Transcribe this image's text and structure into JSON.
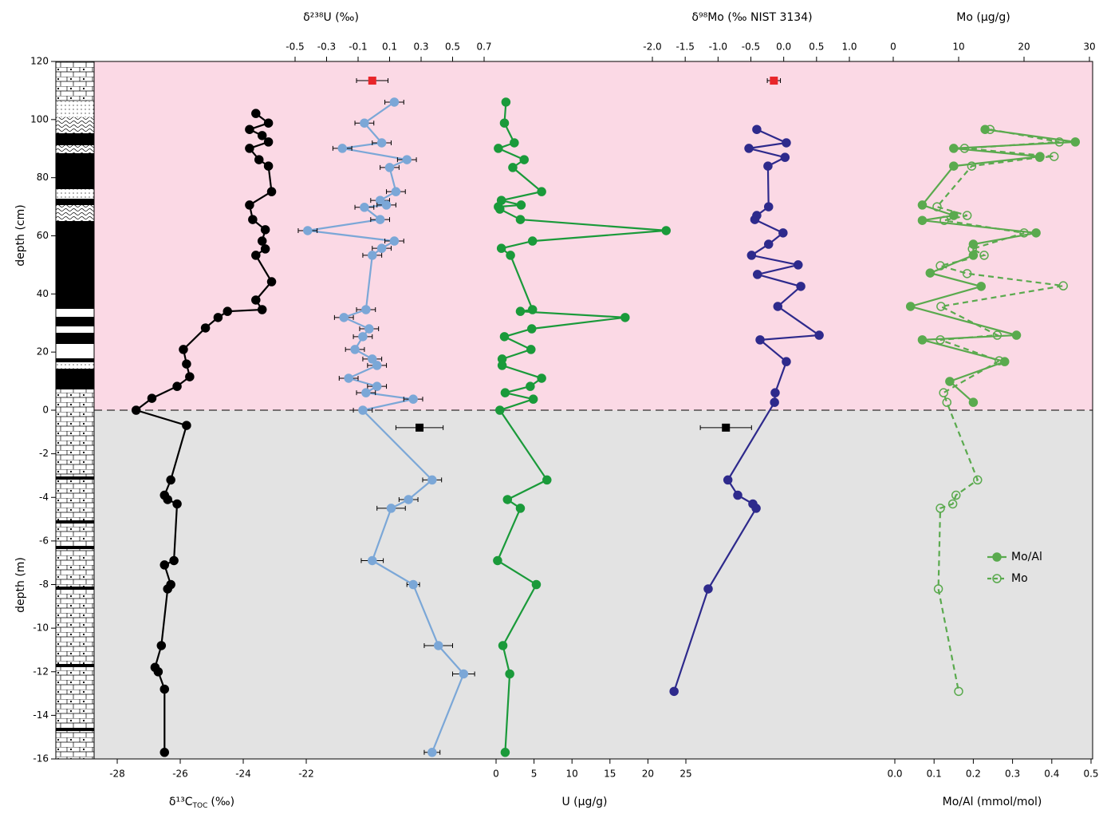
{
  "chart_data": {
    "type": "line",
    "ylabel": "depth (cm)",
    "ylim": [
      0,
      120
    ],
    "yticks": [
      0,
      20,
      40,
      60,
      80,
      100,
      120
    ],
    "ylabel_lower": "depth (m)",
    "ylim_lower": [
      -16,
      0
    ],
    "yticks_lower": [
      -16,
      -14,
      -12,
      -10,
      -8,
      -6,
      -4,
      -2
    ],
    "series": [
      {
        "xlabel": "δ¹³C",
        "xlabel_sub": "TOC",
        "xlabel_unit": "(‰)",
        "axis": "bottom",
        "color": "#000000",
        "marker": "filled",
        "xlim": [
          -28,
          -22
        ],
        "xticks": [
          -28,
          -26,
          -24,
          -22
        ],
        "upper": {
          "depth": [
            102.1,
            98.8,
            96.6,
            94.5,
            92.3,
            90.1,
            86.2,
            84.0,
            75.2,
            70.6,
            65.6,
            62.1,
            58.2,
            55.5,
            53.3,
            44.2,
            37.9,
            34.6,
            34.0,
            31.9,
            28.3,
            20.9,
            15.9,
            11.5,
            8.2,
            4.1,
            0
          ],
          "values": [
            -23.6,
            -23.2,
            -23.8,
            -23.4,
            -23.2,
            -23.8,
            -23.5,
            -23.2,
            -23.1,
            -23.8,
            -23.7,
            -23.3,
            -23.4,
            -23.3,
            -23.6,
            -23.1,
            -23.6,
            -23.4,
            -24.5,
            -24.8,
            -25.2,
            -25.9,
            -25.8,
            -25.7,
            -26.1,
            -26.9,
            -27.4
          ]
        },
        "lower": {
          "depth": [
            -0.7,
            -3.2,
            -3.9,
            -4.1,
            -4.3,
            -6.9,
            -7.1,
            -8.0,
            -8.2,
            -10.8,
            -11.8,
            -12.0,
            -12.8,
            -15.7
          ],
          "values": [
            -25.8,
            -26.3,
            -26.5,
            -26.4,
            -26.1,
            -26.2,
            -26.5,
            -26.3,
            -26.4,
            -26.6,
            -26.8,
            -26.7,
            -26.5,
            -26.5
          ]
        }
      },
      {
        "xlabel": "δ²³⁸U (‰)",
        "axis": "top",
        "color": "#7ba7d7",
        "marker": "filled",
        "xlim": [
          -0.5,
          0.7
        ],
        "xticks": [
          -0.5,
          -0.3,
          -0.1,
          0.1,
          0.3,
          0.5,
          0.7
        ],
        "upper": {
          "depth": [
            106.0,
            98.8,
            92.0,
            90.1,
            86.2,
            83.5,
            75.2,
            72.2,
            70.6,
            69.8,
            65.6,
            61.8,
            58.2,
            55.7,
            53.3,
            34.6,
            31.9,
            28.0,
            25.3,
            20.9,
            17.6,
            15.4,
            11.0,
            8.2,
            6.0,
            3.8,
            0
          ],
          "values": [
            0.13,
            -0.06,
            0.05,
            -0.2,
            0.21,
            0.1,
            0.14,
            0.04,
            0.08,
            -0.06,
            0.04,
            -0.42,
            0.13,
            0.05,
            -0.01,
            -0.05,
            -0.19,
            -0.03,
            -0.07,
            -0.12,
            -0.01,
            0.02,
            -0.16,
            0.02,
            -0.05,
            0.25,
            -0.07
          ],
          "xerr": [
            0.06,
            0.06,
            0.06,
            0.06,
            0.06,
            0.06,
            0.06,
            0.06,
            0.06,
            0.06,
            0.06,
            0.06,
            0.06,
            0.06,
            0.06,
            0.06,
            0.06,
            0.06,
            0.06,
            0.06,
            0.06,
            0.06,
            0.06,
            0.06,
            0.06,
            0.06,
            0.06
          ]
        },
        "lower": {
          "depth": [
            -3.2,
            -4.1,
            -4.5,
            -6.9,
            -8.0,
            -10.8,
            -12.1,
            -15.7
          ],
          "values": [
            0.37,
            0.22,
            0.11,
            -0.01,
            0.25,
            0.41,
            0.57,
            0.37
          ],
          "xerr": [
            0.06,
            0.06,
            0.09,
            0.07,
            0.04,
            0.09,
            0.07,
            0.05
          ]
        },
        "upper_ref": {
          "depth": 113.4,
          "value": -0.01,
          "xerr": 0.1,
          "color": "#e8262a"
        },
        "lower_ref": {
          "depth": -0.8,
          "value": 0.29,
          "xerr": 0.15,
          "color": "#000000"
        }
      },
      {
        "xlabel": "U (μg/g)",
        "axis": "bottom",
        "color": "#1a9a3a",
        "marker": "filled",
        "xlim": [
          0,
          25
        ],
        "xticks": [
          0,
          5,
          10,
          15,
          20,
          25
        ],
        "upper": {
          "depth": [
            106.0,
            98.8,
            92.0,
            90.1,
            86.2,
            83.5,
            75.2,
            72.2,
            70.6,
            70.0,
            69.2,
            65.6,
            61.8,
            58.2,
            55.7,
            53.3,
            34.6,
            34.0,
            31.9,
            28.0,
            25.3,
            20.9,
            17.6,
            15.4,
            11.0,
            8.2,
            6.0,
            3.8,
            0
          ],
          "values": [
            1.3,
            1.1,
            2.4,
            0.3,
            3.7,
            2.2,
            6.0,
            0.7,
            3.3,
            0.3,
            0.5,
            3.2,
            22.4,
            4.8,
            0.7,
            1.9,
            4.8,
            3.2,
            17.0,
            4.7,
            1.1,
            4.6,
            0.8,
            0.8,
            6.0,
            4.5,
            1.2,
            4.9,
            0.5
          ]
        },
        "lower": {
          "depth": [
            -3.2,
            -4.1,
            -4.5,
            -6.9,
            -8.0,
            -10.8,
            -12.1,
            -15.7
          ],
          "values": [
            6.7,
            1.5,
            3.2,
            0.2,
            5.3,
            0.9,
            1.8,
            1.2
          ]
        }
      },
      {
        "xlabel": "δ⁹⁸Mo (‰ NIST 3134)",
        "axis": "top",
        "color": "#2e2a8c",
        "marker": "filled",
        "xlim": [
          -2,
          1
        ],
        "xticks": [
          {
            "value": -2,
            "label": "-2.0"
          },
          -1.5,
          {
            "value": -1,
            "label": "-1.0"
          },
          -0.5,
          {
            "value": 0,
            "label": "0.0"
          },
          0.5,
          {
            "value": 1,
            "label": "1.0"
          }
        ],
        "upper": {
          "depth": [
            96.6,
            92.0,
            90.1,
            87.0,
            84.0,
            70.0,
            67.0,
            65.6,
            61.0,
            57.1,
            53.3,
            50.0,
            46.7,
            42.6,
            35.7,
            25.8,
            24.2,
            16.7,
            6.0,
            2.7
          ],
          "values": [
            -0.41,
            0.04,
            -0.53,
            0.02,
            -0.24,
            -0.23,
            -0.41,
            -0.44,
            -0.01,
            -0.23,
            -0.49,
            0.22,
            -0.4,
            0.26,
            -0.09,
            0.54,
            -0.36,
            0.04,
            -0.13,
            -0.14
          ],
          "xerr": [
            0.05,
            0.05,
            0.05,
            0.05,
            0.05,
            0.05,
            0.05,
            0.05,
            0.05,
            0.05,
            0.05,
            0.05,
            0.05,
            0.05,
            0.05,
            0.05,
            0.05,
            0.05,
            0.05,
            0.05
          ]
        },
        "lower": {
          "depth": [
            -3.2,
            -3.9,
            -4.3,
            -4.5,
            -8.2,
            -12.9
          ],
          "values": [
            -0.85,
            -0.7,
            -0.47,
            -0.42,
            -1.15,
            -1.67
          ]
        },
        "upper_ref": {
          "depth": 113.4,
          "value": -0.15,
          "xerr": 0.1,
          "color": "#e8262a"
        },
        "lower_ref": {
          "depth": -0.8,
          "value": -0.88,
          "xerr": 0.39,
          "color": "#000000"
        }
      },
      {
        "name": "Mo/Al",
        "xlabel": "Mo/Al (mmol/mol)",
        "axis": "bottom",
        "color": "#5aaa4e",
        "marker": "filled",
        "dashed": false,
        "xlim": [
          0,
          0.5
        ],
        "xticks": [
          {
            "value": 0,
            "label": "0.0"
          },
          0.1,
          0.2,
          0.3,
          0.4,
          0.5
        ],
        "upper": {
          "depth": [
            96.6,
            92.3,
            90.1,
            87.3,
            84.0,
            70.6,
            67.0,
            65.3,
            61.0,
            57.1,
            53.3,
            47.2,
            42.6,
            35.7,
            25.8,
            24.2,
            16.7,
            9.9,
            2.7
          ],
          "values": [
            0.23,
            0.46,
            0.15,
            0.37,
            0.15,
            0.07,
            0.15,
            0.07,
            0.36,
            0.2,
            0.2,
            0.09,
            0.22,
            0.04,
            0.31,
            0.07,
            0.28,
            0.14,
            0.2
          ]
        }
      },
      {
        "name": "Mo",
        "xlabel": "Mo (μg/g)",
        "axis": "top",
        "color": "#5aaa4e",
        "marker": "open",
        "dashed": true,
        "xlim": [
          0,
          30
        ],
        "xticks": [
          0,
          10,
          20,
          30
        ],
        "upper": {
          "depth": [
            96.6,
            92.3,
            90.1,
            87.3,
            87.0,
            84.0,
            70.0,
            67.0,
            65.3,
            61.0,
            55.5,
            53.3,
            49.7,
            47.0,
            42.8,
            35.7,
            25.8,
            24.2,
            17.0,
            6.0,
            2.7
          ],
          "values": [
            14.8,
            25.4,
            10.9,
            24.6,
            22.4,
            12.0,
            6.7,
            11.3,
            7.8,
            20.0,
            12.1,
            13.9,
            7.2,
            11.3,
            26.0,
            7.3,
            15.9,
            7.2,
            16.2,
            7.7,
            8.2
          ]
        },
        "lower": {
          "depth": [
            -3.2,
            -3.9,
            -4.3,
            -4.5,
            -8.2,
            -12.9
          ],
          "values": [
            12.9,
            9.6,
            9.1,
            7.2,
            6.9,
            10.0
          ]
        }
      }
    ]
  }
}
